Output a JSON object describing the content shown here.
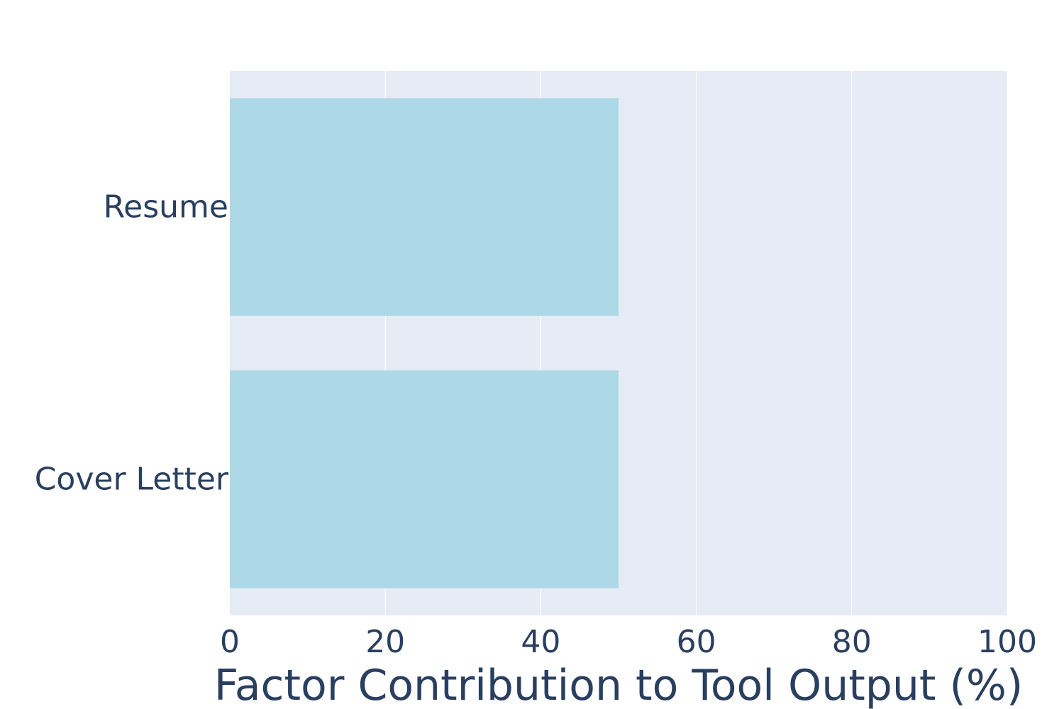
{
  "chart_data": {
    "type": "bar",
    "orientation": "horizontal",
    "categories": [
      "Resume",
      "Cover Letter"
    ],
    "values": [
      50,
      50
    ],
    "title": "",
    "xlabel": "Factor Contribution to Tool Output (%)",
    "ylabel": "",
    "xlim": [
      0,
      100
    ],
    "xticks": [
      0,
      20,
      40,
      60,
      80,
      100
    ],
    "grid": "vertical",
    "legend": "none",
    "colors": {
      "bar": "#add8e6",
      "plot_background": "#e5ecf6",
      "grid": "#ffffff",
      "text": "#2a3f5f",
      "page_background": "#ffffff"
    }
  }
}
